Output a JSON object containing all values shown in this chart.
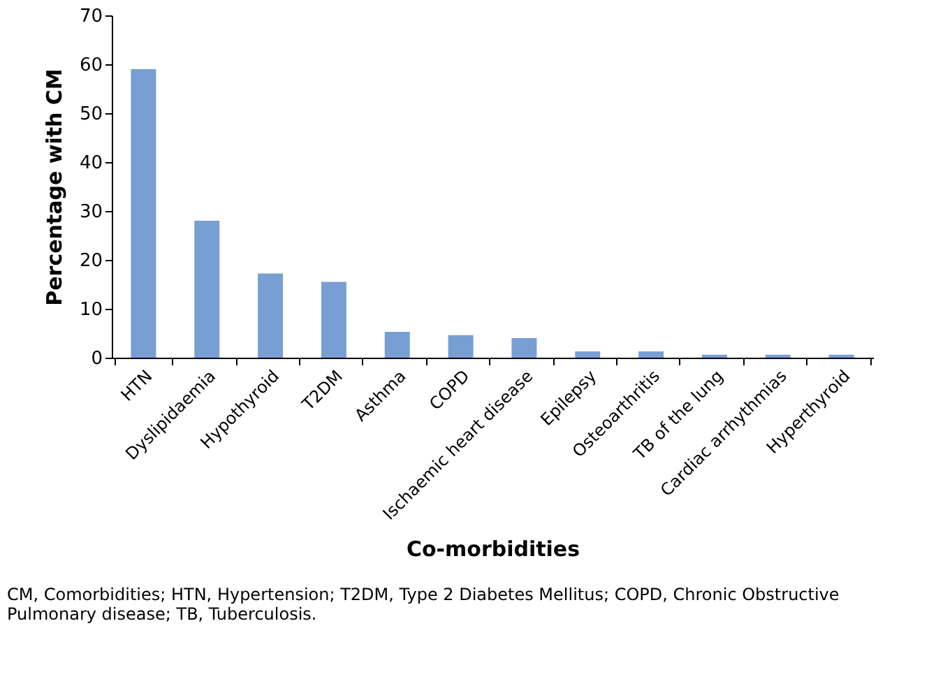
{
  "chart_data": {
    "type": "bar",
    "xlabel": "Co-morbidities",
    "ylabel": "Percentage with CM",
    "categories": [
      "HTN",
      "Dyslipidaemia",
      "Hypothyroid",
      "T2DM",
      "Asthma",
      "COPD",
      "Ischaemic heart disease",
      "Epilepsy",
      "Osteoarthritis",
      "TB of the lung",
      "Cardiac arrhythmias",
      "Hyperthyroid"
    ],
    "values": [
      59,
      28,
      17.2,
      15.5,
      5.3,
      4.6,
      4.0,
      1.3,
      1.3,
      0.6,
      0.6,
      0.6
    ],
    "color": "#779fd4",
    "ylim": [
      0,
      70
    ],
    "yticks": [
      0,
      10,
      20,
      30,
      40,
      50,
      60,
      70
    ],
    "grid": false,
    "annotations": [
      "CM, Comorbidities; HTN, Hypertension; T2DM, Type 2 Diabetes Mellitus; COPD, Chronic Obstructive Pulmonary disease; TB, Tuberculosis."
    ]
  }
}
